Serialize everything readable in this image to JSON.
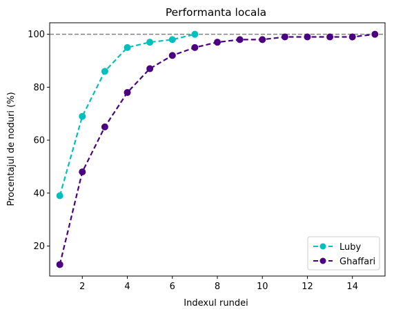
{
  "chart_data": {
    "type": "line",
    "title": "Performanta locala",
    "xlabel": "Indexul rundei",
    "ylabel": "Procentajul de noduri (%)",
    "xlim": [
      0.55,
      15.45
    ],
    "ylim": [
      8.65,
      104.35
    ],
    "xticks": [
      2,
      4,
      6,
      8,
      10,
      12,
      14
    ],
    "yticks": [
      20,
      40,
      60,
      80,
      100
    ],
    "reference_line": {
      "y": 100,
      "color": "#808080",
      "style": "dashed"
    },
    "legend_position": "lower-right",
    "grid": false,
    "series": [
      {
        "name": "Luby",
        "color": "#00bfbf",
        "x": [
          1,
          2,
          3,
          4,
          5,
          6,
          7
        ],
        "y": [
          39,
          69,
          86,
          95,
          97,
          98,
          100
        ]
      },
      {
        "name": "Ghaffari",
        "color": "#4b0082",
        "x": [
          1,
          2,
          3,
          4,
          5,
          6,
          7,
          8,
          9,
          10,
          11,
          12,
          13,
          14,
          15
        ],
        "y": [
          13,
          48,
          65,
          78,
          87,
          92,
          95,
          97,
          98,
          98,
          99,
          99,
          99,
          99,
          100
        ]
      }
    ]
  }
}
